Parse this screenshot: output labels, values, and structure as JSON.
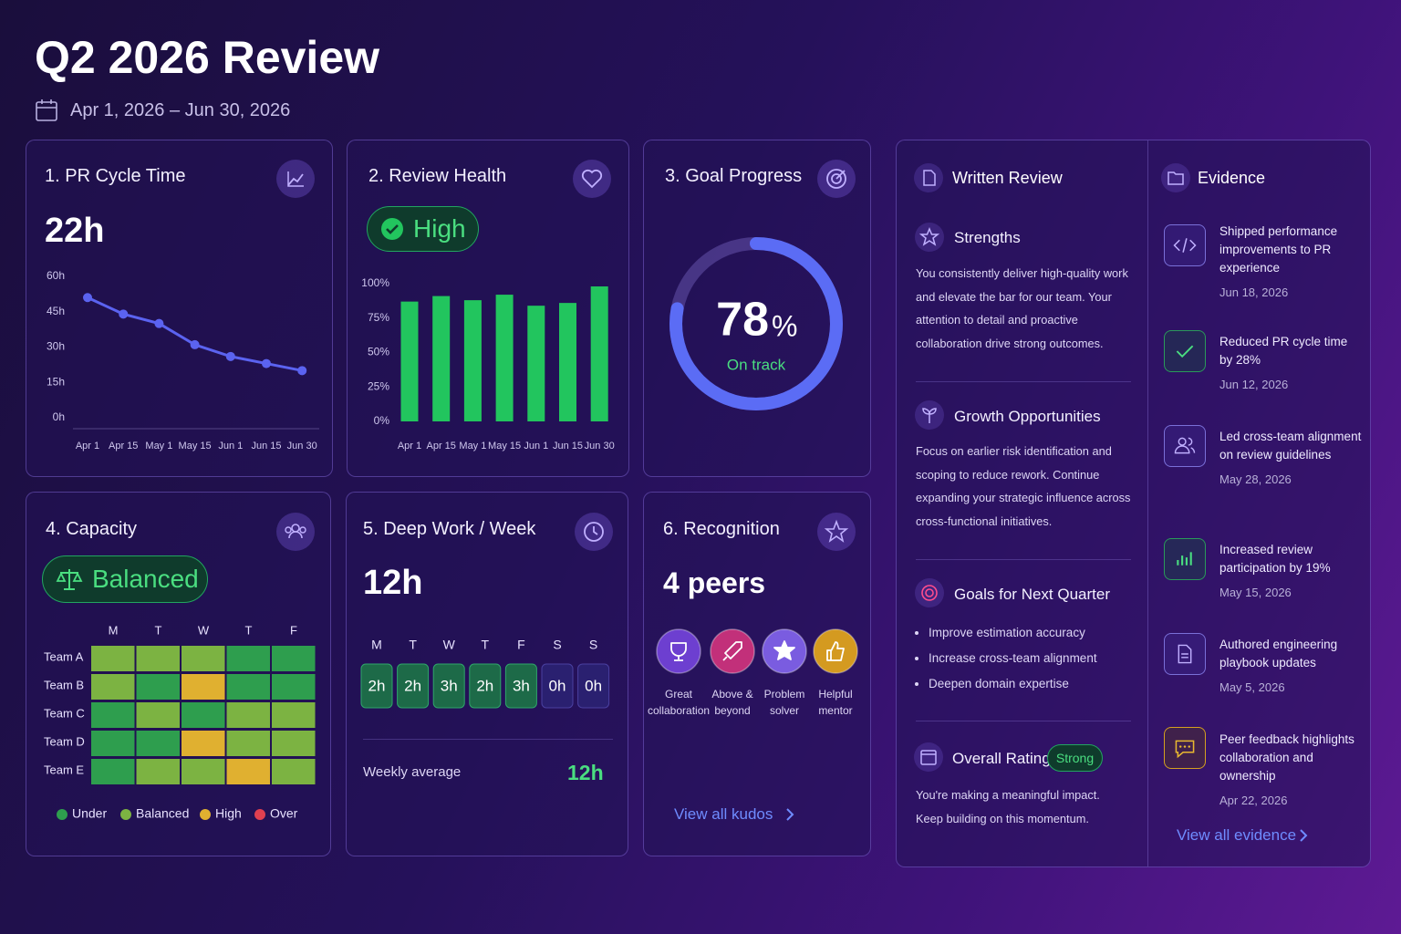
{
  "header": {
    "title": "Q2 2026 Review",
    "date_range": "Apr 1, 2026 – Jun 30, 2026"
  },
  "pr_cycle_time": {
    "title": "1. PR Cycle Time",
    "value": "22h",
    "chart": {
      "type": "line",
      "categories": [
        "Apr 1",
        "Apr 15",
        "May 1",
        "May 15",
        "Jun 1",
        "Jun 15",
        "Jun 30"
      ],
      "values": [
        51,
        44,
        40,
        31,
        26,
        23,
        20
      ],
      "color": "#5b63f0",
      "ylim": [
        0,
        60
      ],
      "yticks": [
        {
          "value": 0,
          "label": "0h"
        },
        {
          "value": 15,
          "label": "15h"
        },
        {
          "value": 30,
          "label": "30h"
        },
        {
          "value": 45,
          "label": "45h"
        },
        {
          "value": 60,
          "label": "60h"
        }
      ]
    }
  },
  "review_health": {
    "title": "2. Review Health",
    "status": "High",
    "chart": {
      "type": "bar",
      "categories": [
        "Apr 1",
        "Apr 15",
        "May 1",
        "May 15",
        "Jun 1",
        "Jun 15",
        "Jun 30"
      ],
      "values": [
        87,
        91,
        88,
        92,
        84,
        86,
        98
      ],
      "color": "#22c55e",
      "ylim": [
        0,
        100
      ],
      "yticks": [
        {
          "value": 0,
          "label": "0%"
        },
        {
          "value": 25,
          "label": "25%"
        },
        {
          "value": 50,
          "label": "50%"
        },
        {
          "value": 75,
          "label": "75%"
        },
        {
          "value": 100,
          "label": "100%"
        }
      ]
    }
  },
  "goal_progress": {
    "title": "3. Goal Progress",
    "chart": {
      "type": "donut",
      "value": 78,
      "unit": "%",
      "ylim": [
        0,
        100
      ],
      "color": "#5b6cf5"
    },
    "status": "On track"
  },
  "capacity": {
    "title": "4. Capacity",
    "status": "Balanced",
    "chart": {
      "type": "heatmap",
      "columns": [
        "M",
        "T",
        "W",
        "T",
        "F"
      ],
      "rows": [
        "Team A",
        "Team B",
        "Team C",
        "Team D",
        "Team E"
      ],
      "cells": [
        [
          1,
          1,
          1,
          0,
          0
        ],
        [
          1,
          0,
          2,
          0,
          0
        ],
        [
          0,
          1,
          0,
          1,
          1
        ],
        [
          0,
          0,
          2,
          1,
          1
        ],
        [
          0,
          1,
          1,
          2,
          1
        ]
      ],
      "legend": [
        {
          "name": "Under",
          "color": "#2e9e4e"
        },
        {
          "name": "Balanced",
          "color": "#7cb342"
        },
        {
          "name": "High",
          "color": "#e0b030"
        },
        {
          "name": "Over",
          "color": "#e04050"
        }
      ]
    }
  },
  "deep_work": {
    "title": "5. Deep Work / Week",
    "value": "12h",
    "chart": {
      "type": "boxes",
      "categories": [
        "M",
        "T",
        "W",
        "T",
        "F",
        "S",
        "S"
      ],
      "values": [
        2,
        2,
        3,
        2,
        3,
        0,
        0
      ],
      "value_labels": [
        "2h",
        "2h",
        "3h",
        "2h",
        "3h",
        "0h",
        "0h"
      ]
    },
    "average_label": "Weekly average",
    "average": "12h"
  },
  "recognition": {
    "title": "6. Recognition",
    "count": "4 peers",
    "badges": [
      "Great collaboration",
      "Above & beyond",
      "Problem solver",
      "Helpful mentor"
    ],
    "link": "View all kudos"
  },
  "written_review": {
    "title": "Written Review",
    "strengths": {
      "title": "Strengths",
      "text": "You consistently deliver high-quality work and elevate the bar for our team. Your attention to detail and proactive collaboration drive strong outcomes."
    },
    "growth": {
      "title": "Growth Opportunities",
      "text": "Focus on earlier risk identification and scoping to reduce rework. Continue expanding your strategic influence across cross-functional initiatives."
    },
    "goals": {
      "title": "Goals for Next Quarter",
      "items": [
        "Improve estimation accuracy",
        "Increase cross-team alignment",
        "Deepen domain expertise"
      ]
    },
    "rating": {
      "title": "Overall Rating",
      "badge": "Strong",
      "text": "You're making a meaningful impact. Keep building on this momentum."
    }
  },
  "evidence": {
    "title": "Evidence",
    "items": [
      {
        "text": "Shipped performance improvements to PR experience",
        "date": "Jun 18, 2026"
      },
      {
        "text": "Reduced PR cycle time by 28%",
        "date": "Jun 12, 2026"
      },
      {
        "text": "Led cross-team alignment on review guidelines",
        "date": "May 28, 2026"
      },
      {
        "text": "Increased review participation by 19%",
        "date": "May 15, 2026"
      },
      {
        "text": "Authored engineering playbook updates",
        "date": "May 5, 2026"
      },
      {
        "text": "Peer feedback highlights collaboration and ownership",
        "date": "Apr 22, 2026"
      }
    ],
    "link": "View all evidence"
  }
}
